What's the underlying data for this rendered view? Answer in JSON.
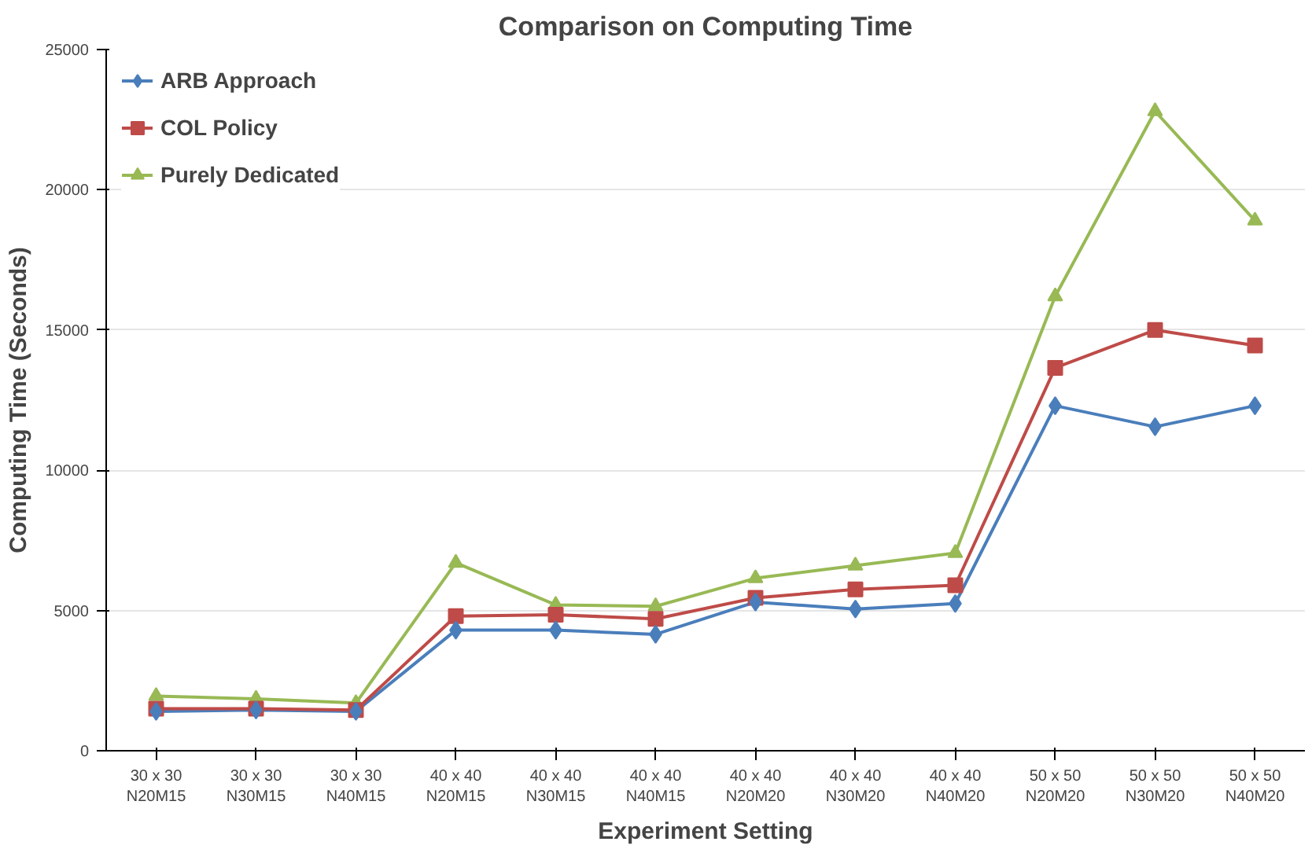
{
  "chart_data": {
    "type": "line",
    "title": "Comparison on Computing Time",
    "xlabel": "Experiment Setting",
    "ylabel": "Computing Time (Seconds)",
    "categories": [
      "30 x 30\nN20M15",
      "30 x 30\nN30M15",
      "30 x 30\nN40M15",
      "40 x 40\nN20M15",
      "40 x 40\nN30M15",
      "40 x 40\nN40M15",
      "40 x 40\nN20M20",
      "40 x 40\nN30M20",
      "40 x 40\nN40M20",
      "50 x 50\nN20M20",
      "50 x 50\nN30M20",
      "50 x 50\nN40M20"
    ],
    "series": [
      {
        "name": "ARB Approach",
        "color": "#4a7ebb",
        "marker": "diamond",
        "values": [
          1400,
          1450,
          1400,
          4300,
          4300,
          4150,
          5300,
          5050,
          5250,
          12300,
          11550,
          12300
        ]
      },
      {
        "name": "COL Policy",
        "color": "#be4b48",
        "marker": "square",
        "values": [
          1500,
          1500,
          1450,
          4800,
          4850,
          4700,
          5450,
          5750,
          5900,
          13650,
          15000,
          14450
        ]
      },
      {
        "name": "Purely Dedicated",
        "color": "#98b954",
        "marker": "triangle",
        "values": [
          1950,
          1850,
          1700,
          6700,
          5200,
          5150,
          6150,
          6600,
          7050,
          16200,
          22800,
          18900
        ]
      }
    ],
    "ylim": [
      0,
      25000
    ],
    "yticks": [
      0,
      5000,
      10000,
      15000,
      20000,
      25000
    ],
    "grid": "y",
    "legend": "top left",
    "line_style": "solid"
  }
}
